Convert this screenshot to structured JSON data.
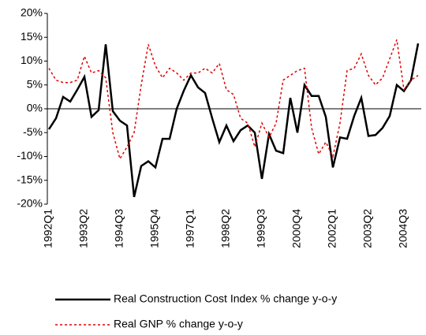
{
  "chart_data": {
    "type": "line",
    "categories": [
      "1992Q1",
      null,
      null,
      null,
      null,
      "1993Q2",
      null,
      null,
      null,
      null,
      "1994Q3",
      null,
      null,
      null,
      null,
      "1995Q4",
      null,
      null,
      null,
      null,
      "1997Q1",
      null,
      null,
      null,
      null,
      "1998Q2",
      null,
      null,
      null,
      null,
      "1999Q3",
      null,
      null,
      null,
      null,
      "2000Q4",
      null,
      null,
      null,
      null,
      "2002Q1",
      null,
      null,
      null,
      null,
      "2003Q2",
      null,
      null,
      null,
      null,
      "2004Q3",
      null,
      null
    ],
    "series": [
      {
        "name": "Real Construction Cost Index % change y-o-y",
        "color": "#000000",
        "dash": false,
        "values": [
          -4.3,
          -2,
          2.5,
          1.5,
          4,
          6.7,
          -1.7,
          -0.3,
          13.5,
          -0.5,
          -2.5,
          -3.5,
          -18.5,
          -12,
          -11,
          -12.3,
          -6.3,
          -6.3,
          0,
          3.8,
          7,
          4.5,
          3.3,
          -2,
          -7,
          -3.5,
          -6.8,
          -4.5,
          -3.5,
          -5,
          -14.7,
          -5.3,
          -8.8,
          -9.3,
          2.3,
          -5,
          5,
          2.7,
          2.7,
          -1.7,
          -12.3,
          -6,
          -6.3,
          -1.5,
          2.3,
          -5.7,
          -5.5,
          -4,
          -1.5,
          5,
          3.7,
          6,
          13.7
        ]
      },
      {
        "name": "Real GNP % change y-o-y",
        "color": "#e00000",
        "dash": true,
        "values": [
          8.5,
          6,
          5.5,
          5.5,
          6,
          11,
          7.5,
          8,
          6.5,
          -5,
          -10.5,
          -8,
          -5,
          5,
          13.5,
          9,
          6.5,
          8.5,
          7.5,
          6,
          7.5,
          7.5,
          8.5,
          7.5,
          9.5,
          4,
          3,
          -2,
          -3,
          -8,
          -3,
          -6,
          -3,
          6,
          7,
          8,
          8.5,
          -4,
          -9.5,
          -7,
          -10,
          -3,
          8,
          8.5,
          11.5,
          7,
          5,
          6.5,
          10.5,
          14.5,
          4,
          6,
          7
        ]
      }
    ],
    "ylim": [
      -20,
      20
    ],
    "yticks": [
      {
        "value": -20,
        "label": "-20%"
      },
      {
        "value": -15,
        "label": "-15%"
      },
      {
        "value": -10,
        "label": "-10%"
      },
      {
        "value": -5,
        "label": "-5%"
      },
      {
        "value": 0,
        "label": "0%"
      },
      {
        "value": 5,
        "label": "5%"
      },
      {
        "value": 10,
        "label": "10%"
      },
      {
        "value": 15,
        "label": "15%"
      },
      {
        "value": 20,
        "label": "20%"
      }
    ],
    "grid": false,
    "legend": "bottom"
  }
}
